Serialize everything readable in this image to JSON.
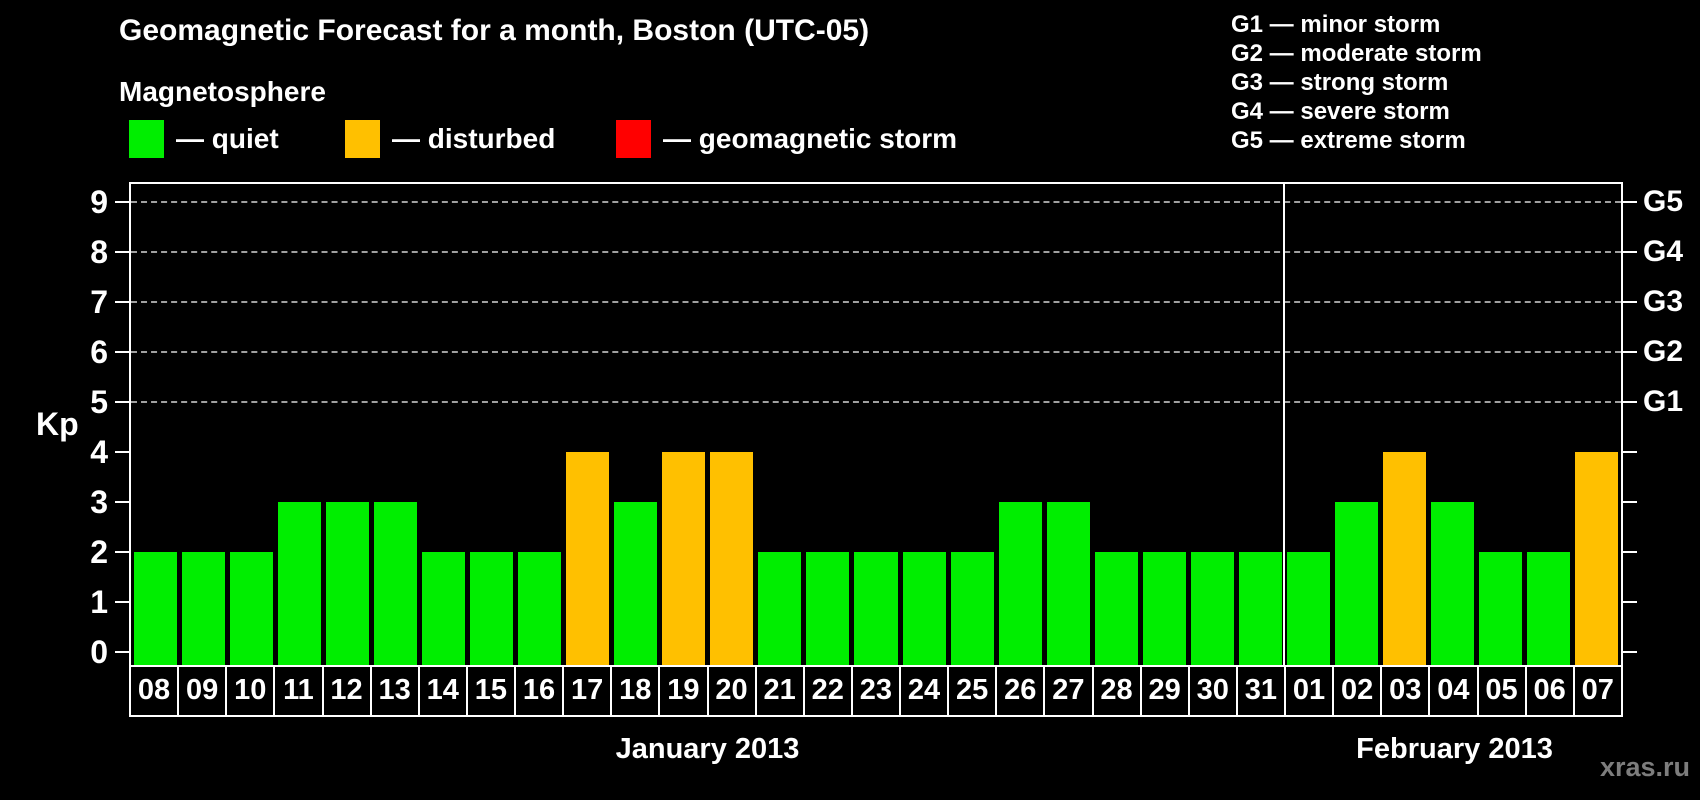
{
  "chart_data": {
    "type": "bar",
    "title": "Geomagnetic Forecast for a month, Boston (UTC-05)",
    "ylabel": "Kp",
    "ylim": [
      0,
      9
    ],
    "yticks": [
      0,
      1,
      2,
      3,
      4,
      5,
      6,
      7,
      8,
      9
    ],
    "grid": "dashed horizontal gridlines at Kp 5-9 only",
    "legend_position": "top-left",
    "categories": [
      "08",
      "09",
      "10",
      "11",
      "12",
      "13",
      "14",
      "15",
      "16",
      "17",
      "18",
      "19",
      "20",
      "21",
      "22",
      "23",
      "24",
      "25",
      "26",
      "27",
      "28",
      "29",
      "30",
      "31",
      "01",
      "02",
      "03",
      "04",
      "05",
      "06",
      "07"
    ],
    "values": [
      2,
      2,
      2,
      3,
      3,
      3,
      2,
      2,
      2,
      4,
      3,
      4,
      4,
      2,
      2,
      2,
      2,
      2,
      3,
      3,
      2,
      2,
      2,
      2,
      2,
      3,
      4,
      3,
      2,
      2,
      4
    ],
    "states": [
      "quiet",
      "quiet",
      "quiet",
      "quiet",
      "quiet",
      "quiet",
      "quiet",
      "quiet",
      "quiet",
      "disturbed",
      "quiet",
      "disturbed",
      "disturbed",
      "quiet",
      "quiet",
      "quiet",
      "quiet",
      "quiet",
      "quiet",
      "quiet",
      "quiet",
      "quiet",
      "quiet",
      "quiet",
      "quiet",
      "quiet",
      "disturbed",
      "quiet",
      "quiet",
      "quiet",
      "disturbed"
    ],
    "colors": {
      "quiet": "#00EE00",
      "disturbed": "#FFC000",
      "geomagnetic-storm": "#FF0000"
    },
    "months": [
      {
        "label": "January 2013",
        "days": 24
      },
      {
        "label": "February 2013",
        "days": 7
      }
    ],
    "right_axis": [
      {
        "label": "G5",
        "kp": 9
      },
      {
        "label": "G4",
        "kp": 8
      },
      {
        "label": "G3",
        "kp": 7
      },
      {
        "label": "G2",
        "kp": 6
      },
      {
        "label": "G1",
        "kp": 5
      }
    ]
  },
  "magnetosphere_legend": {
    "heading": "Magnetosphere",
    "items": [
      {
        "name": "quiet",
        "label": "— quiet",
        "color": "#00EE00"
      },
      {
        "name": "disturbed",
        "label": "— disturbed",
        "color": "#FFC000"
      },
      {
        "name": "geomagnetic-storm",
        "label": "— geomagnetic storm",
        "color": "#FF0000"
      }
    ]
  },
  "g_scale_legend": {
    "items": [
      "G1 — minor storm",
      "G2 — moderate storm",
      "G3 — strong storm",
      "G4 — severe storm",
      "G5 — extreme storm"
    ]
  },
  "watermark": "xras.ru"
}
